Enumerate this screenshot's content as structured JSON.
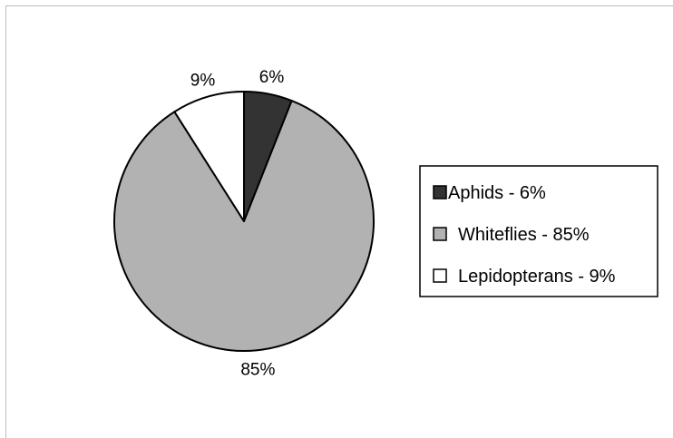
{
  "chart_data": {
    "type": "pie",
    "title": "",
    "slices": [
      {
        "name": "Aphids",
        "value": 6,
        "data_label": "6%",
        "legend_label": "Aphids - 6%",
        "color": "#333333"
      },
      {
        "name": "Whiteflies",
        "value": 85,
        "data_label": "85%",
        "legend_label": "Whiteflies - 85%",
        "color": "#b2b2b2"
      },
      {
        "name": "Lepidopterans",
        "value": 9,
        "data_label": "9%",
        "legend_label": "Lepidopterans - 9%",
        "color": "#ffffff"
      }
    ],
    "start_angle_deg": 0,
    "direction": "clockwise",
    "legend": {
      "position": "right"
    },
    "grid": false
  }
}
